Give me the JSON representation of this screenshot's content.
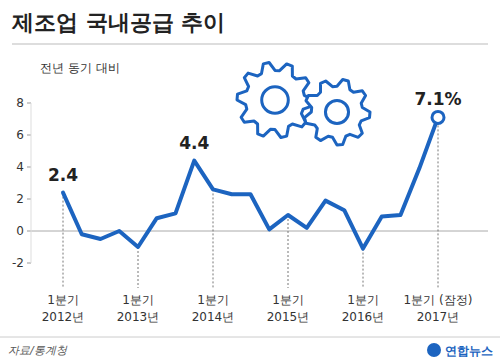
{
  "chart_data": {
    "type": "line",
    "title": "제조업 국내공급 추이",
    "subtitle": "전년 동기 대비",
    "categories": [
      "1분기\n2012년",
      null,
      null,
      null,
      "1분기\n2013년",
      null,
      null,
      null,
      "1분기\n2014년",
      null,
      null,
      null,
      "1분기\n2015년",
      null,
      null,
      null,
      "1분기\n2016년",
      null,
      null,
      null,
      "1분기 (잠정)\n2017년"
    ],
    "values": [
      2.4,
      -0.2,
      -0.5,
      0.0,
      -1.0,
      0.8,
      1.1,
      4.4,
      2.6,
      2.3,
      2.3,
      0.1,
      1.0,
      0.2,
      1.9,
      1.3,
      -1.1,
      0.9,
      1.0,
      3.9,
      7.1
    ],
    "value_labels": [
      "2.4",
      null,
      null,
      null,
      null,
      null,
      null,
      "4.4",
      null,
      null,
      null,
      null,
      null,
      null,
      null,
      null,
      null,
      null,
      null,
      null,
      "7.1%"
    ],
    "data_labels": true,
    "color": "#1c64c0",
    "marker": "end",
    "grid": false,
    "ylim": [
      -2,
      8
    ],
    "yticks": [
      -2,
      0,
      2,
      4,
      6,
      8
    ],
    "source": "자료/통계청",
    "credit": "연합뉴스"
  }
}
